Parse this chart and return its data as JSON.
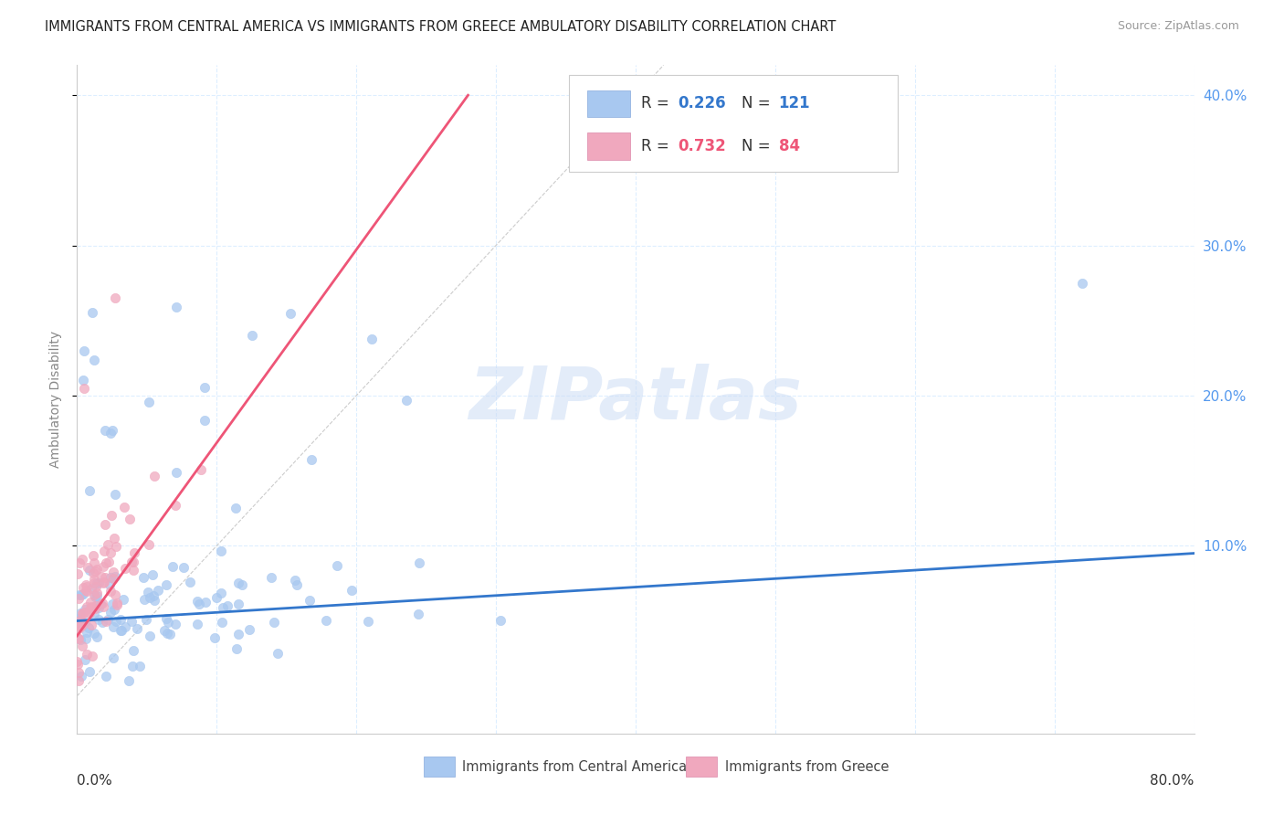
{
  "title": "IMMIGRANTS FROM CENTRAL AMERICA VS IMMIGRANTS FROM GREECE AMBULATORY DISABILITY CORRELATION CHART",
  "source": "Source: ZipAtlas.com",
  "ylabel": "Ambulatory Disability",
  "xlim": [
    0.0,
    0.8
  ],
  "ylim": [
    -0.025,
    0.42
  ],
  "blue_R": 0.226,
  "blue_N": 121,
  "pink_R": 0.732,
  "pink_N": 84,
  "blue_color": "#a8c8f0",
  "pink_color": "#f0a8be",
  "blue_line_color": "#3377cc",
  "pink_line_color": "#ee5577",
  "legend_label_blue": "Immigrants from Central America",
  "legend_label_pink": "Immigrants from Greece",
  "watermark": "ZIPatlas",
  "background_color": "#ffffff",
  "grid_color": "#ddeeff",
  "axis_tick_color": "#5599ee",
  "title_fontsize": 10.5,
  "source_fontsize": 9,
  "tick_fontsize": 11,
  "ylabel_fontsize": 10,
  "legend_fontsize": 12
}
